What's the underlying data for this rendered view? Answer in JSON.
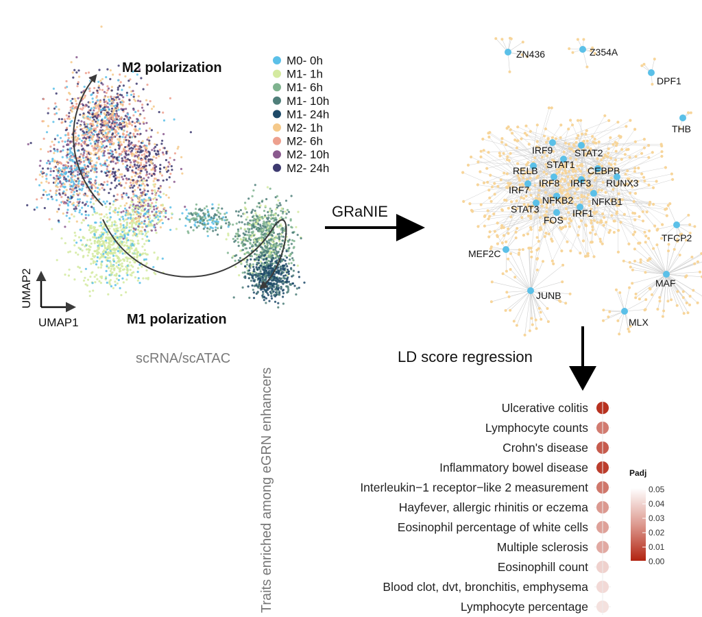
{
  "umap": {
    "title_m2": "M2 polarization",
    "title_m1": "M1 polarization",
    "axis_x": "UMAP1",
    "axis_y": "UMAP2",
    "caption": "scRNA/scATAC",
    "legend": [
      {
        "label": "M0- 0h",
        "color": "#5bc0e8"
      },
      {
        "label": "M1- 1h",
        "color": "#d4eaa0"
      },
      {
        "label": "M1- 6h",
        "color": "#7fb38f"
      },
      {
        "label": "M1- 10h",
        "color": "#4f7f7a"
      },
      {
        "label": "M1- 24h",
        "color": "#1e4a68"
      },
      {
        "label": "M2- 1h",
        "color": "#f5c98a"
      },
      {
        "label": "M2- 6h",
        "color": "#eda08e"
      },
      {
        "label": "M2- 10h",
        "color": "#8a5a8e"
      },
      {
        "label": "M2- 24h",
        "color": "#3d3a70"
      }
    ]
  },
  "arrows": {
    "granie": "GRaNIE",
    "ldsc": "LD score regression"
  },
  "network": {
    "node_color": "#5bc0e8",
    "edge_node_color": "#f7d59a",
    "hub_labels": [
      "IRF9",
      "STAT2",
      "RELB",
      "STAT1",
      "CEBPB",
      "IRF7",
      "IRF8",
      "IRF3",
      "RUNX3",
      "NFKB2",
      "NFKB1",
      "STAT3",
      "FOS",
      "IRF1"
    ],
    "satellite_labels": [
      "ZN436",
      "Z354A",
      "DPF1",
      "THB",
      "TFCP2",
      "MEF2C",
      "MAF",
      "JUNB",
      "MLX"
    ]
  },
  "chart_data": {
    "type": "dot",
    "ylabel": "Traits enriched among eGRN enhancers",
    "legend_title": "Padj",
    "color_scale": {
      "min": 0.0,
      "max": 0.05,
      "low_color": "#b22310",
      "high_color": "#ffffff",
      "ticks": [
        "0.05",
        "0.04",
        "0.03",
        "0.02",
        "0.01",
        "0.00"
      ]
    },
    "categories": [
      "Ulcerative colitis",
      "Lymphocyte counts",
      "Crohn's disease",
      "Inflammatory bowel disease",
      "Interleukin−1 receptor−like 2 measurement",
      "Hayfever, allergic rhinitis or eczema",
      "Eosinophil percentage of white cells",
      "Multiple sclerosis",
      "Eosinophill count",
      "Blood clot, dvt, bronchitis, emphysema",
      "Lymphocyte percentage"
    ],
    "padj": [
      0.002,
      0.017,
      0.01,
      0.004,
      0.016,
      0.024,
      0.026,
      0.028,
      0.038,
      0.04,
      0.042
    ]
  }
}
